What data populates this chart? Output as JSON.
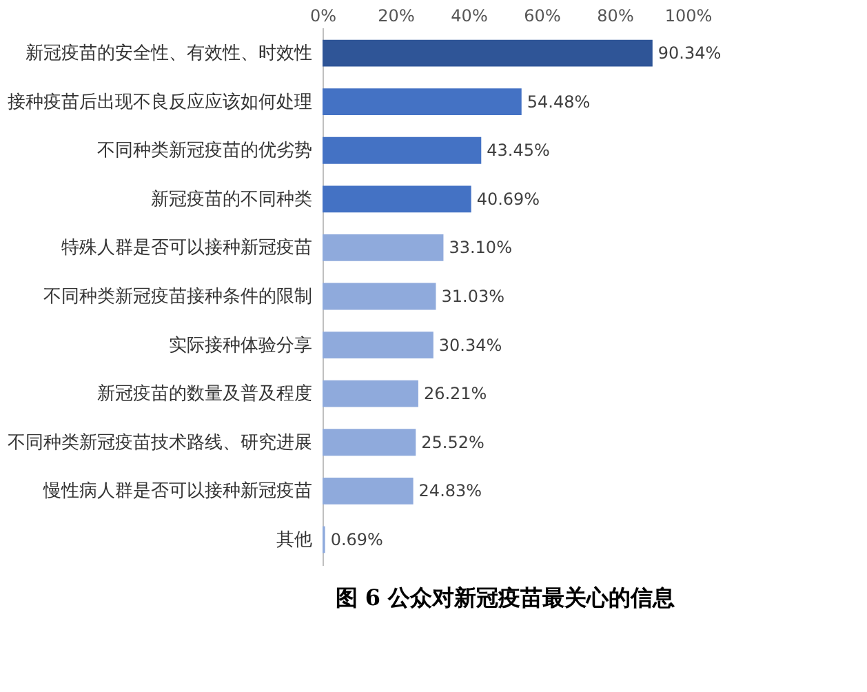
{
  "chart_data": {
    "type": "bar",
    "orientation": "horizontal",
    "title": "图 6  公众对新冠疫苗最关心的信息",
    "categories": [
      "新冠疫苗的安全性、有效性、时效性",
      "接种疫苗后出现不良反应应该如何处理",
      "不同种类新冠疫苗的优劣势",
      "新冠疫苗的不同种类",
      "特殊人群是否可以接种新冠疫苗",
      "不同种类新冠疫苗接种条件的限制",
      "实际接种体验分享",
      "新冠疫苗的数量及普及程度",
      "不同种类新冠疫苗技术路线、研究进展",
      "慢性病人群是否可以接种新冠疫苗",
      "其他"
    ],
    "values": [
      90.34,
      54.48,
      43.45,
      40.69,
      33.1,
      31.03,
      30.34,
      26.21,
      25.52,
      24.83,
      0.69
    ],
    "value_labels": [
      "90.34%",
      "54.48%",
      "43.45%",
      "40.69%",
      "33.10%",
      "31.03%",
      "30.34%",
      "26.21%",
      "25.52%",
      "24.83%",
      "0.69%"
    ],
    "colors": [
      "#2f5597",
      "#4472c4",
      "#4472c4",
      "#4472c4",
      "#8faadc",
      "#8faadc",
      "#8faadc",
      "#8faadc",
      "#8faadc",
      "#8faadc",
      "#8faadc"
    ],
    "xlim": [
      0,
      100
    ],
    "xticks": [
      {
        "value": 0,
        "label": "0%"
      },
      {
        "value": 20,
        "label": "20%"
      },
      {
        "value": 40,
        "label": "40%"
      },
      {
        "value": 60,
        "label": "60%"
      },
      {
        "value": 80,
        "label": "80%"
      },
      {
        "value": 100,
        "label": "100%"
      }
    ],
    "grid": false
  }
}
